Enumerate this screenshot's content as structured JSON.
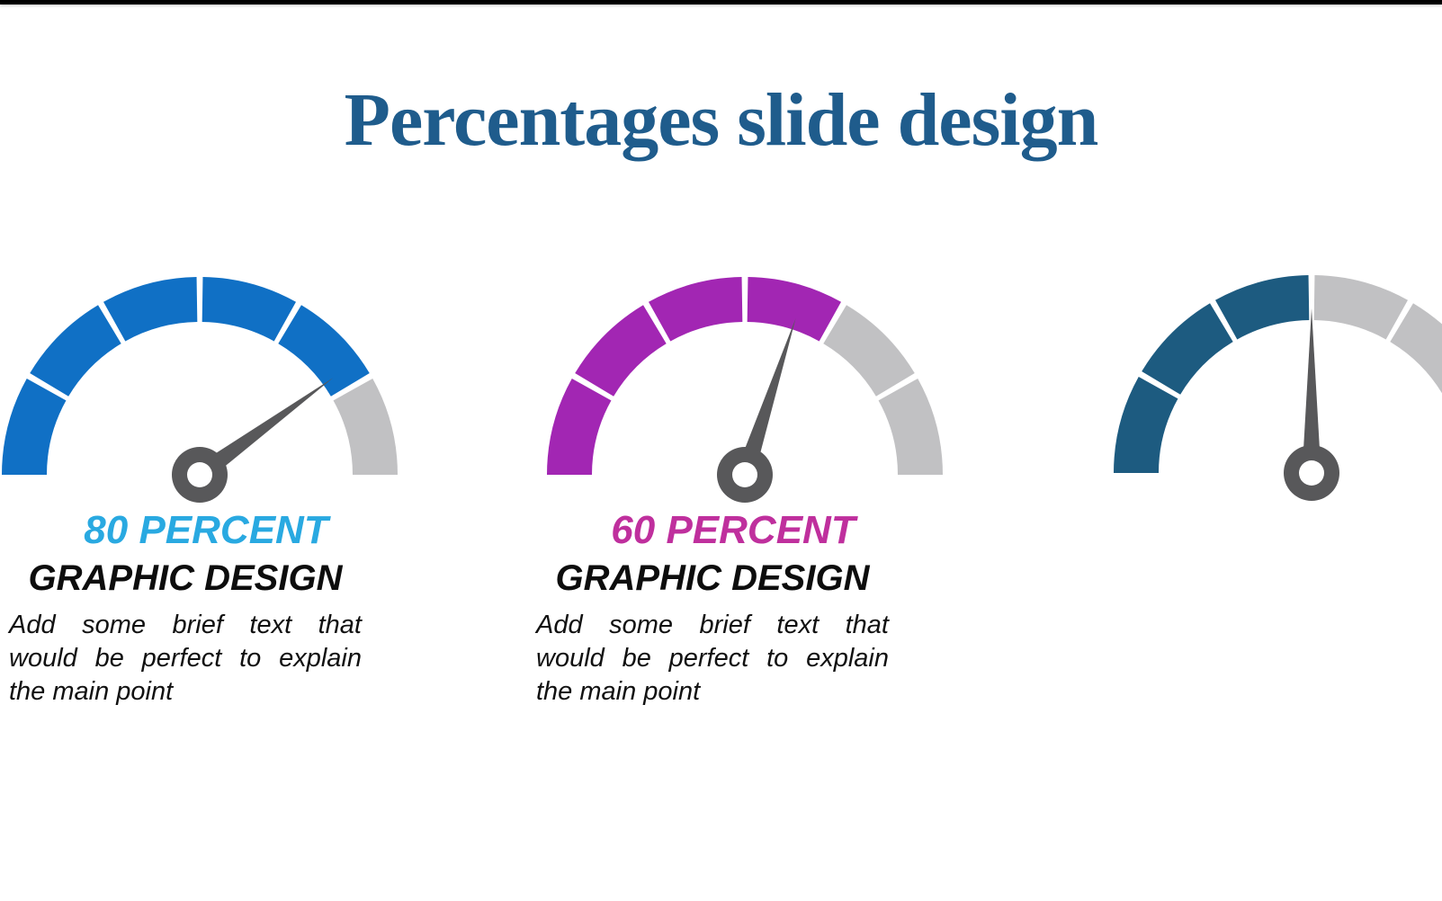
{
  "title": "Percentages slide design",
  "title_color": "#1F5C8C",
  "top_bar_color": "#000000",
  "cards": [
    {
      "percent_label": "80 PERCENT",
      "percent_color": "#29A9E1",
      "heading": "GRAPHIC DESIGN",
      "body_lines": [
        "Add some brief text that",
        "would be perfect to explain",
        "the main point"
      ]
    },
    {
      "percent_label": "60 PERCENT",
      "percent_color": "#BF2F9D",
      "heading": "GRAPHIC DESIGN",
      "body_lines": [
        "Add some brief text that",
        "would be perfect to explain",
        "the main point"
      ]
    }
  ],
  "chart_data": [
    {
      "type": "gauge",
      "label": "80 PERCENT",
      "value_percent": 80,
      "arc_span_deg": 180,
      "segments_total": 6,
      "segments_filled": 5,
      "fill_color": "#1070C5",
      "track_color": "#C1C1C3",
      "needle_color": "#58585A",
      "needle_angle_deg": 36,
      "cut_off_right": false
    },
    {
      "type": "gauge",
      "label": "60 PERCENT",
      "value_percent": 60,
      "arc_span_deg": 180,
      "segments_total": 6,
      "segments_filled": 4,
      "fill_color": "#A226B3",
      "track_color": "#C1C1C3",
      "needle_color": "#58585A",
      "needle_angle_deg": 72,
      "cut_off_right": false
    },
    {
      "type": "gauge",
      "label": null,
      "value_percent": null,
      "arc_span_deg": 180,
      "segments_total": 6,
      "segments_filled": 3,
      "fill_color": "#1D5B80",
      "track_color": "#C1C1C3",
      "needle_color": "#58585A",
      "needle_angle_deg": 90,
      "cut_off_right": true
    }
  ]
}
